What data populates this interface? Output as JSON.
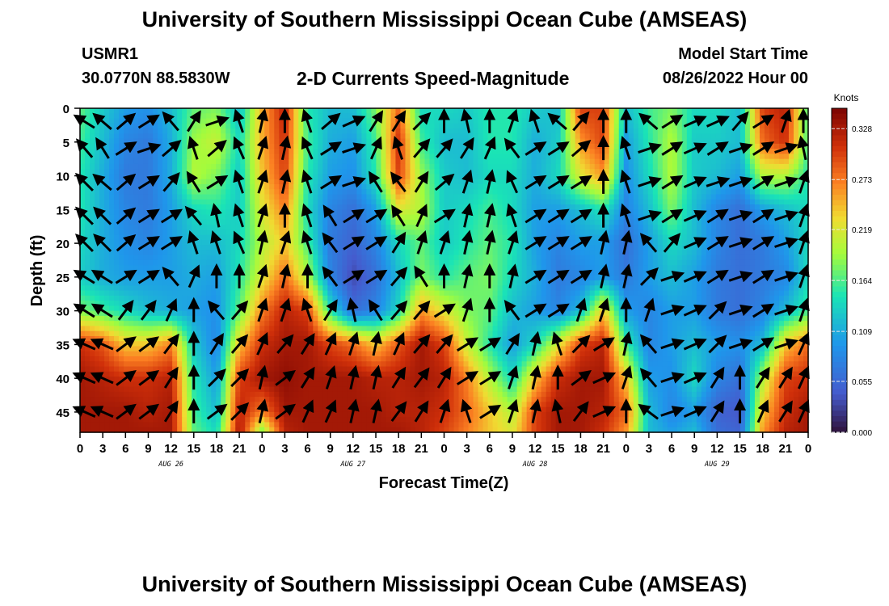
{
  "page": {
    "title": "University of Southern Mississippi Ocean Cube (AMSEAS)",
    "station": "USMR1",
    "coords": "30.0770N  88.5830W",
    "subtitle": "2-D Currents Speed-Magnitude",
    "start_label": "Model Start Time",
    "start_value": "08/26/2022 Hour 00",
    "title_repeat": "University of Southern Mississippi Ocean Cube (AMSEAS)"
  },
  "chart_data": {
    "type": "heatmap",
    "title": "2-D Currents Speed-Magnitude",
    "xlabel": "Forecast Time(Z)",
    "ylabel": "Depth (ft)",
    "x_range_hours": [
      0,
      96
    ],
    "y_range_ft": [
      0,
      48
    ],
    "x_ticks": [
      "0",
      "3",
      "6",
      "9",
      "12",
      "15",
      "18",
      "21",
      "0",
      "3",
      "6",
      "9",
      "12",
      "15",
      "18",
      "21",
      "0",
      "3",
      "6",
      "9",
      "12",
      "15",
      "18",
      "21",
      "0",
      "3",
      "6",
      "9",
      "12",
      "15",
      "18",
      "21",
      "0"
    ],
    "y_ticks": [
      0,
      5,
      10,
      15,
      20,
      25,
      30,
      35,
      40,
      45
    ],
    "day_labels": [
      {
        "label": "AUG 26",
        "hour": 12
      },
      {
        "label": "AUG 27",
        "hour": 36
      },
      {
        "label": "AUG 28",
        "hour": 60
      },
      {
        "label": "AUG 29",
        "hour": 84
      }
    ],
    "colorbar": {
      "unit": "Knots",
      "ticks": [
        "0.328",
        "0.273",
        "0.219",
        "0.164",
        "0.109",
        "0.055",
        "0.000"
      ],
      "min": 0.0,
      "max": 0.35
    },
    "depth_rows_ft": [
      0,
      5,
      10,
      15,
      20,
      25,
      30,
      35,
      40,
      45,
      48
    ],
    "time_cols_hr": [
      0,
      3,
      6,
      9,
      12,
      15,
      18,
      21,
      24,
      27,
      30,
      33,
      36,
      39,
      42,
      45,
      48,
      51,
      54,
      57,
      60,
      63,
      66,
      69,
      72,
      75,
      78,
      81,
      84,
      87,
      90,
      93,
      96
    ],
    "speed_knots": [
      [
        0.17,
        0.13,
        0.1,
        0.09,
        0.12,
        0.17,
        0.18,
        0.12,
        0.25,
        0.32,
        0.15,
        0.12,
        0.12,
        0.18,
        0.28,
        0.14,
        0.14,
        0.13,
        0.15,
        0.15,
        0.13,
        0.12,
        0.3,
        0.3,
        0.12,
        0.16,
        0.18,
        0.14,
        0.14,
        0.12,
        0.3,
        0.32,
        0.16
      ],
      [
        0.16,
        0.12,
        0.08,
        0.07,
        0.11,
        0.19,
        0.21,
        0.14,
        0.25,
        0.31,
        0.16,
        0.11,
        0.1,
        0.16,
        0.31,
        0.16,
        0.12,
        0.12,
        0.15,
        0.15,
        0.11,
        0.13,
        0.26,
        0.3,
        0.1,
        0.15,
        0.2,
        0.13,
        0.13,
        0.12,
        0.28,
        0.31,
        0.16
      ],
      [
        0.15,
        0.11,
        0.07,
        0.07,
        0.11,
        0.2,
        0.18,
        0.13,
        0.24,
        0.3,
        0.15,
        0.1,
        0.09,
        0.15,
        0.3,
        0.19,
        0.13,
        0.12,
        0.14,
        0.14,
        0.11,
        0.14,
        0.22,
        0.26,
        0.09,
        0.14,
        0.2,
        0.13,
        0.12,
        0.1,
        0.2,
        0.2,
        0.15
      ],
      [
        0.15,
        0.11,
        0.08,
        0.07,
        0.1,
        0.14,
        0.15,
        0.13,
        0.22,
        0.27,
        0.14,
        0.08,
        0.06,
        0.1,
        0.22,
        0.2,
        0.13,
        0.14,
        0.16,
        0.14,
        0.1,
        0.1,
        0.12,
        0.15,
        0.08,
        0.12,
        0.18,
        0.12,
        0.08,
        0.06,
        0.1,
        0.12,
        0.14
      ],
      [
        0.14,
        0.11,
        0.09,
        0.08,
        0.1,
        0.12,
        0.12,
        0.14,
        0.2,
        0.24,
        0.16,
        0.07,
        0.05,
        0.08,
        0.14,
        0.17,
        0.13,
        0.15,
        0.17,
        0.15,
        0.1,
        0.08,
        0.1,
        0.1,
        0.06,
        0.1,
        0.14,
        0.12,
        0.08,
        0.06,
        0.07,
        0.1,
        0.14
      ],
      [
        0.13,
        0.11,
        0.1,
        0.1,
        0.1,
        0.11,
        0.1,
        0.15,
        0.22,
        0.28,
        0.2,
        0.08,
        0.03,
        0.06,
        0.12,
        0.18,
        0.15,
        0.17,
        0.18,
        0.14,
        0.11,
        0.07,
        0.08,
        0.1,
        0.07,
        0.1,
        0.12,
        0.1,
        0.07,
        0.06,
        0.07,
        0.08,
        0.14
      ],
      [
        0.18,
        0.16,
        0.14,
        0.12,
        0.11,
        0.1,
        0.09,
        0.17,
        0.27,
        0.32,
        0.3,
        0.15,
        0.06,
        0.08,
        0.14,
        0.26,
        0.22,
        0.18,
        0.17,
        0.12,
        0.1,
        0.08,
        0.12,
        0.24,
        0.1,
        0.08,
        0.1,
        0.1,
        0.07,
        0.06,
        0.08,
        0.12,
        0.16
      ],
      [
        0.31,
        0.29,
        0.24,
        0.24,
        0.27,
        0.13,
        0.08,
        0.24,
        0.31,
        0.33,
        0.33,
        0.3,
        0.28,
        0.24,
        0.29,
        0.33,
        0.3,
        0.21,
        0.15,
        0.1,
        0.14,
        0.22,
        0.3,
        0.32,
        0.16,
        0.08,
        0.1,
        0.12,
        0.1,
        0.09,
        0.12,
        0.24,
        0.28
      ],
      [
        0.33,
        0.32,
        0.31,
        0.31,
        0.32,
        0.15,
        0.1,
        0.3,
        0.33,
        0.34,
        0.33,
        0.33,
        0.33,
        0.32,
        0.32,
        0.33,
        0.32,
        0.27,
        0.2,
        0.14,
        0.24,
        0.31,
        0.33,
        0.33,
        0.24,
        0.1,
        0.09,
        0.14,
        0.08,
        0.06,
        0.2,
        0.3,
        0.31
      ],
      [
        0.33,
        0.33,
        0.33,
        0.32,
        0.33,
        0.16,
        0.12,
        0.32,
        0.27,
        0.33,
        0.33,
        0.33,
        0.33,
        0.33,
        0.32,
        0.32,
        0.31,
        0.28,
        0.24,
        0.2,
        0.3,
        0.33,
        0.33,
        0.32,
        0.28,
        0.12,
        0.08,
        0.1,
        0.05,
        0.04,
        0.24,
        0.31,
        0.33
      ],
      [
        0.33,
        0.33,
        0.33,
        0.33,
        0.33,
        0.17,
        0.14,
        0.33,
        0.18,
        0.32,
        0.33,
        0.33,
        0.33,
        0.33,
        0.33,
        0.32,
        0.3,
        0.27,
        0.24,
        0.22,
        0.3,
        0.33,
        0.33,
        0.31,
        0.26,
        0.12,
        0.1,
        0.12,
        0.06,
        0.05,
        0.26,
        0.32,
        0.33
      ]
    ],
    "arrow_grid": {
      "cols_hr": [
        0,
        3,
        6,
        9,
        12,
        15,
        18,
        21,
        24,
        27,
        30,
        33,
        36,
        39,
        42,
        45,
        48,
        51,
        54,
        57,
        60,
        63,
        66,
        69,
        72,
        75,
        78,
        81,
        84,
        87,
        90,
        93,
        96
      ],
      "rows_ft": [
        2,
        6,
        11,
        16,
        20,
        25,
        30,
        35,
        40,
        45
      ],
      "u": [
        [
          -0.8,
          -0.7,
          0.7,
          0.8,
          -0.6,
          0.5,
          0.9,
          -0.3,
          0.2,
          0.0,
          -0.3,
          0.7,
          0.9,
          0.5,
          0.5,
          0.7,
          0.0,
          -0.2,
          0.0,
          0.3,
          -0.3,
          -0.7,
          0.6,
          0.0,
          0.0,
          -0.7,
          0.8,
          0.9,
          0.9,
          0.6,
          0.8,
          0.3,
          0.0
        ],
        [
          -0.6,
          -0.5,
          0.8,
          0.9,
          0.7,
          -0.3,
          0.7,
          -0.4,
          0.3,
          0.2,
          -0.4,
          0.8,
          0.9,
          0.4,
          -0.3,
          0.6,
          0.6,
          0.5,
          0.4,
          -0.6,
          0.8,
          0.8,
          0.7,
          0.0,
          -0.3,
          0.9,
          0.8,
          0.9,
          0.8,
          0.9,
          0.8,
          0.9,
          -0.2
        ],
        [
          -0.7,
          -0.7,
          0.7,
          0.8,
          0.6,
          -0.5,
          0.8,
          -0.3,
          0.3,
          0.2,
          -0.3,
          0.8,
          0.9,
          -0.5,
          -0.6,
          0.5,
          0.7,
          0.3,
          0.2,
          -0.4,
          0.8,
          0.8,
          0.8,
          0.0,
          -0.3,
          0.9,
          0.8,
          0.9,
          0.9,
          0.9,
          0.8,
          0.9,
          0.3
        ],
        [
          -0.7,
          -0.7,
          0.7,
          0.8,
          0.8,
          -0.6,
          -0.2,
          -0.3,
          0.3,
          0.0,
          -0.3,
          -0.5,
          0.8,
          0.8,
          -0.5,
          0.4,
          0.8,
          0.2,
          0.2,
          -0.3,
          0.8,
          0.8,
          0.8,
          0.0,
          -0.3,
          0.9,
          0.8,
          0.9,
          0.8,
          0.9,
          0.8,
          0.9,
          0.3
        ],
        [
          -0.7,
          -0.7,
          0.7,
          0.8,
          0.8,
          -0.3,
          -0.3,
          -0.4,
          0.2,
          0.3,
          -0.3,
          -0.6,
          0.8,
          0.8,
          0.5,
          0.3,
          0.3,
          0.2,
          0.2,
          0.3,
          0.8,
          0.8,
          0.8,
          0.2,
          0.2,
          -0.6,
          0.6,
          0.9,
          0.8,
          0.9,
          0.8,
          0.9,
          0.3
        ],
        [
          -0.8,
          -0.8,
          0.8,
          0.8,
          -0.6,
          0.4,
          0.0,
          0.0,
          0.3,
          0.2,
          0.0,
          -0.6,
          0.8,
          0.8,
          0.6,
          -0.5,
          0.0,
          0.2,
          0.0,
          0.2,
          0.8,
          0.8,
          0.8,
          0.2,
          0.2,
          0.7,
          0.9,
          0.9,
          0.8,
          0.9,
          0.8,
          0.9,
          0.3
        ],
        [
          -0.8,
          -0.8,
          0.6,
          0.6,
          0.4,
          0.0,
          -0.6,
          0.6,
          0.3,
          0.3,
          -0.3,
          0.5,
          -0.2,
          -0.5,
          0.6,
          0.6,
          0.8,
          0.3,
          0.0,
          -0.6,
          0.8,
          0.8,
          0.3,
          0.3,
          0.0,
          0.3,
          0.9,
          0.9,
          0.7,
          0.9,
          0.8,
          0.9,
          0.3
        ],
        [
          -0.9,
          -0.9,
          0.8,
          0.8,
          0.6,
          0.0,
          0.5,
          0.6,
          0.4,
          0.6,
          0.5,
          0.4,
          0.3,
          0.2,
          0.4,
          0.6,
          0.6,
          0.8,
          0.8,
          0.5,
          0.2,
          -0.3,
          0.7,
          0.8,
          0.2,
          -0.6,
          0.9,
          0.9,
          0.7,
          0.9,
          0.8,
          0.9,
          0.4
        ],
        [
          -0.9,
          -0.9,
          0.8,
          0.8,
          0.5,
          0.0,
          0.7,
          0.7,
          0.2,
          0.8,
          0.5,
          0.3,
          0.2,
          0.2,
          0.5,
          0.6,
          0.5,
          0.8,
          0.8,
          0.3,
          0.2,
          0.0,
          0.8,
          0.9,
          0.3,
          -0.6,
          0.9,
          0.9,
          0.5,
          0.0,
          0.5,
          0.5,
          0.4
        ],
        [
          -0.9,
          -0.9,
          0.8,
          0.8,
          0.5,
          0.0,
          0.8,
          0.7,
          0.2,
          0.8,
          0.4,
          0.4,
          0.2,
          0.2,
          0.6,
          0.5,
          0.3,
          -0.3,
          0.8,
          0.3,
          0.2,
          -0.2,
          0.6,
          0.9,
          0.0,
          -0.8,
          0.9,
          0.9,
          0.5,
          0.0,
          0.4,
          0.5,
          0.4
        ]
      ],
      "v": [
        [
          0.5,
          0.6,
          0.6,
          0.5,
          0.7,
          0.8,
          0.3,
          0.9,
          0.9,
          1.0,
          0.9,
          0.6,
          0.4,
          0.8,
          0.8,
          0.7,
          1.0,
          0.9,
          1.0,
          0.9,
          0.9,
          0.6,
          0.7,
          1.0,
          1.0,
          0.6,
          0.5,
          0.4,
          0.4,
          0.7,
          0.5,
          0.9,
          1.0
        ],
        [
          0.7,
          0.8,
          0.5,
          0.3,
          0.6,
          0.9,
          0.6,
          0.9,
          0.9,
          0.9,
          0.9,
          0.5,
          0.3,
          0.9,
          0.9,
          0.7,
          0.7,
          0.8,
          0.9,
          0.8,
          0.5,
          0.5,
          0.6,
          1.0,
          0.9,
          0.3,
          0.5,
          0.4,
          0.5,
          0.3,
          0.5,
          0.3,
          0.9
        ],
        [
          0.7,
          0.6,
          0.6,
          0.5,
          0.7,
          0.8,
          0.5,
          0.9,
          0.9,
          0.9,
          0.9,
          0.5,
          0.3,
          0.8,
          0.8,
          0.8,
          0.6,
          0.9,
          0.9,
          0.9,
          0.5,
          0.5,
          0.5,
          1.0,
          0.9,
          0.3,
          0.5,
          0.4,
          0.3,
          0.3,
          0.5,
          0.3,
          0.9
        ],
        [
          0.7,
          0.7,
          0.6,
          0.5,
          0.5,
          0.7,
          0.9,
          0.9,
          0.9,
          1.0,
          0.9,
          0.8,
          0.5,
          0.5,
          0.8,
          0.9,
          0.5,
          0.9,
          0.9,
          0.9,
          0.5,
          0.5,
          0.5,
          1.0,
          0.9,
          0.3,
          0.5,
          0.4,
          0.5,
          0.3,
          0.5,
          0.3,
          0.9
        ],
        [
          0.7,
          0.7,
          0.6,
          0.5,
          0.5,
          0.9,
          0.9,
          0.9,
          0.9,
          0.9,
          0.9,
          0.8,
          0.5,
          0.5,
          0.8,
          0.9,
          0.9,
          0.9,
          0.9,
          0.9,
          0.5,
          0.5,
          0.5,
          0.9,
          0.9,
          0.7,
          0.7,
          0.4,
          0.5,
          0.3,
          0.5,
          0.3,
          0.9
        ],
        [
          0.5,
          0.5,
          0.5,
          0.5,
          0.7,
          0.9,
          1.0,
          1.0,
          0.9,
          0.9,
          1.0,
          0.8,
          0.5,
          0.5,
          0.7,
          0.8,
          1.0,
          0.9,
          1.0,
          0.9,
          0.5,
          0.5,
          0.5,
          0.9,
          0.9,
          0.7,
          0.3,
          0.4,
          0.5,
          0.3,
          0.5,
          0.3,
          0.9
        ],
        [
          0.5,
          0.5,
          0.8,
          0.8,
          0.9,
          1.0,
          0.7,
          0.7,
          0.9,
          0.9,
          0.9,
          0.8,
          0.9,
          0.8,
          0.7,
          0.7,
          0.5,
          0.9,
          1.0,
          0.8,
          0.5,
          0.5,
          0.9,
          0.9,
          1.0,
          0.9,
          0.3,
          0.4,
          0.7,
          0.3,
          0.5,
          0.3,
          0.9
        ],
        [
          0.4,
          0.4,
          0.6,
          0.6,
          0.8,
          1.0,
          0.8,
          0.7,
          0.9,
          0.7,
          0.8,
          0.9,
          0.9,
          0.9,
          0.9,
          0.7,
          0.7,
          0.5,
          0.5,
          0.8,
          0.9,
          0.9,
          0.7,
          0.5,
          0.9,
          0.7,
          0.3,
          0.4,
          0.7,
          0.3,
          0.5,
          0.3,
          0.9
        ],
        [
          0.4,
          0.4,
          0.6,
          0.6,
          0.8,
          1.0,
          0.7,
          0.7,
          0.9,
          0.6,
          0.8,
          0.9,
          0.9,
          0.9,
          0.8,
          0.8,
          0.8,
          0.5,
          0.5,
          0.9,
          0.9,
          1.0,
          0.6,
          0.4,
          0.9,
          0.7,
          0.3,
          0.4,
          0.8,
          1.0,
          0.8,
          0.8,
          0.9
        ],
        [
          0.4,
          0.4,
          0.6,
          0.6,
          0.8,
          1.0,
          0.6,
          0.7,
          0.9,
          0.6,
          0.9,
          0.9,
          0.9,
          0.9,
          0.8,
          0.8,
          0.9,
          0.9,
          0.5,
          0.9,
          0.9,
          0.9,
          0.8,
          0.4,
          1.0,
          0.6,
          0.3,
          0.4,
          0.8,
          1.0,
          0.9,
          0.8,
          0.9
        ]
      ]
    }
  }
}
